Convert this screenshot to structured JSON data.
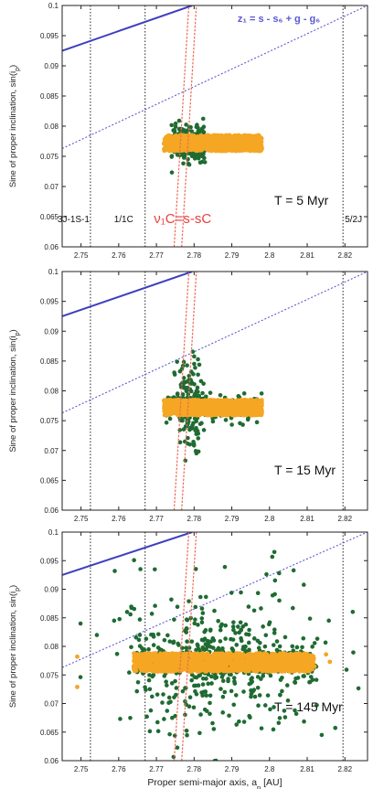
{
  "chart_data": [
    {
      "type": "scatter",
      "panel_label": "T = 5 Myr",
      "xlim": [
        2.745,
        2.826
      ],
      "ylim": [
        0.06,
        0.1
      ],
      "xticks": [
        "2.75",
        "2.76",
        "2.77",
        "2.78",
        "2.79",
        "2.8",
        "2.81",
        "2.82"
      ],
      "yticks": [
        "0.06",
        "0.065",
        "0.07",
        "0.075",
        "0.08",
        "0.085",
        "0.09",
        "0.095",
        "0.1"
      ],
      "ylabel": "Sine of proper inclination, sin(i_p)",
      "resonances": [
        {
          "a": 2.7525,
          "label": "3J-1S-1"
        },
        {
          "a": 2.767,
          "label": "1/1C"
        },
        {
          "a": 2.8195,
          "label": "5/2J"
        }
      ],
      "nu1c_label": "ν₁C=s-sC",
      "z1_label": "z₁ = s - s₆ + g - g₆",
      "cloud": {
        "a_min": 2.772,
        "a_max": 2.798,
        "sin_center": 0.0772,
        "sin_spread": 0.0013
      },
      "green_spread": {
        "a_sigma": 0.0035,
        "sin_sigma": 0.0014,
        "n": 260
      }
    },
    {
      "type": "scatter",
      "panel_label": "T = 15 Myr",
      "xlim": [
        2.745,
        2.826
      ],
      "ylim": [
        0.06,
        0.1
      ],
      "xticks": [
        "2.75",
        "2.76",
        "2.77",
        "2.78",
        "2.79",
        "2.8",
        "2.81",
        "2.82"
      ],
      "yticks": [
        "0.06",
        "0.065",
        "0.07",
        "0.075",
        "0.08",
        "0.085",
        "0.09",
        "0.095",
        "0.1"
      ],
      "ylabel": "Sine of proper inclination, sin(i_p)",
      "resonances": [
        {
          "a": 2.7525,
          "label": ""
        },
        {
          "a": 2.767,
          "label": ""
        },
        {
          "a": 2.8195,
          "label": ""
        }
      ],
      "nu1c_label": "",
      "z1_label": "",
      "cloud": {
        "a_min": 2.772,
        "a_max": 2.798,
        "sin_center": 0.0772,
        "sin_spread": 0.0013
      },
      "green_spread": {
        "a_sigma": 0.003,
        "sin_sigma": 0.004,
        "n": 330
      }
    },
    {
      "type": "scatter",
      "panel_label": "T = 145 Myr",
      "xlim": [
        2.745,
        2.826
      ],
      "ylim": [
        0.06,
        0.1
      ],
      "xticks": [
        "2.75",
        "2.76",
        "2.77",
        "2.78",
        "2.79",
        "2.8",
        "2.81",
        "2.82"
      ],
      "yticks": [
        "0.06",
        "0.065",
        "0.07",
        "0.075",
        "0.08",
        "0.085",
        "0.09",
        "0.095",
        "0.1"
      ],
      "ylabel": "Sine of proper inclination, sin(i_p)",
      "xlabel": "Proper semi-major axis, a_p [AU]",
      "resonances": [
        {
          "a": 2.7525,
          "label": ""
        },
        {
          "a": 2.767,
          "label": ""
        },
        {
          "a": 2.8195,
          "label": ""
        }
      ],
      "nu1c_label": "",
      "z1_label": "",
      "cloud": {
        "a_min": 2.764,
        "a_max": 2.812,
        "sin_center": 0.0772,
        "sin_spread": 0.0016
      },
      "green_spread": {
        "a_sigma": 0.014,
        "sin_sigma": 0.0065,
        "n": 700
      }
    }
  ],
  "colors": {
    "orange": "#f5a623",
    "green": "#1f6b32",
    "red": "#ec6b5b",
    "blue": "#3f3fbf",
    "blue_dotted": "#5a5ad0"
  },
  "lines": {
    "z1_solid": [
      [
        2.745,
        0.0925
      ],
      [
        2.7795,
        0.1
      ]
    ],
    "z1_dotted": [
      [
        2.745,
        0.0763
      ],
      [
        2.826,
        0.1
      ]
    ],
    "nu1c_left": [
      [
        2.7747,
        0.06
      ],
      [
        2.7786,
        0.1
      ]
    ],
    "nu1c_right": [
      [
        2.7767,
        0.06
      ],
      [
        2.7806,
        0.1
      ]
    ]
  }
}
